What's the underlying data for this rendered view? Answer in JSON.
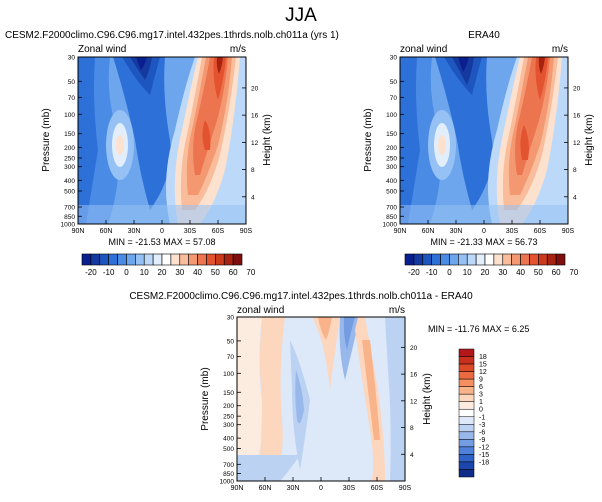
{
  "figure": {
    "title": "JJA",
    "x_ticks": [
      "90N",
      "60N",
      "30N",
      "0",
      "30S",
      "60S",
      "90S"
    ],
    "p_ticks": [
      "30",
      "50",
      "70",
      "100",
      "150",
      "200",
      "250",
      "300",
      "400",
      "500",
      "700",
      "850",
      "1000"
    ],
    "p_values": [
      30,
      50,
      70,
      100,
      150,
      200,
      250,
      300,
      400,
      500,
      700,
      850,
      1000
    ],
    "h_ticks": [
      "20",
      "16",
      "12",
      "8",
      "4"
    ],
    "h_values": [
      20,
      16,
      12,
      8,
      4
    ]
  },
  "panels": [
    {
      "id": "model",
      "title": "CESM2.F2000climo.C96.C96.mg17.intel.432pes.1thrds.nolb.ch011a (yrs 1)",
      "left_label": "Zonal wind",
      "units": "m/s",
      "ylabel": "Pressure (mb)",
      "ylabel_right": "Height (km)",
      "min_max": "MIN = -21.53  MAX = 57.08"
    },
    {
      "id": "obs",
      "title": "ERA40",
      "left_label": "zonal wind",
      "units": "m/s",
      "ylabel": "Pressure (mb)",
      "ylabel_right": "Height (km)",
      "min_max": "MIN = -21.33  MAX = 56.73"
    },
    {
      "id": "diff",
      "title": "CESM2.F2000climo.C96.C96.mg17.intel.432pes.1thrds.nolb.ch011a - ERA40",
      "left_label": "zonal wind",
      "units": "m/s",
      "ylabel": "Pressure (mb)",
      "ylabel_right": "Height (km)",
      "min_max": "MIN = -11.76  MAX =  6.25"
    }
  ],
  "colorbars": {
    "top": {
      "labels": [
        "-20",
        "-10",
        "0",
        "10",
        "20",
        "30",
        "40",
        "50",
        "60",
        "70"
      ],
      "colors": [
        "#0a1f8f",
        "#15399f",
        "#1e56c0",
        "#2d70d8",
        "#4a8be6",
        "#6ea6ee",
        "#95c1f4",
        "#bdd9f9",
        "#e2eefb",
        "#ffffff",
        "#fde1cf",
        "#f9bd9c",
        "#f49871",
        "#ec744e",
        "#e3532f",
        "#cb3a1d",
        "#a82212",
        "#7f0f0f"
      ]
    },
    "diff": {
      "labels": [
        "18",
        "15",
        "12",
        "9",
        "6",
        "3",
        "1",
        "0",
        "-1",
        "-3",
        "-6",
        "-9",
        "-12",
        "-15",
        "-18"
      ],
      "colors": [
        "#b2181b",
        "#c8301d",
        "#dd4a28",
        "#ec6a3f",
        "#f58f60",
        "#f9b38a",
        "#fcd6bd",
        "#fcece0",
        "#ffffff",
        "#dde8f9",
        "#bcd2f3",
        "#98b8ec",
        "#739ce3",
        "#4f80da",
        "#2f63c8",
        "#1c46ab",
        "#0e2c8a"
      ]
    }
  },
  "chart_data": [
    {
      "type": "heatmap",
      "title": "CESM2.F2000climo.C96.C96.mg17.intel.432pes.1thrds.nolb.ch011a (yrs 1)",
      "xlabel": "",
      "ylabel": "Pressure (mb)",
      "x_range": [
        90,
        -90
      ],
      "y_range": [
        1000,
        30
      ],
      "summary": {
        "min": -21.53,
        "max": 57.08
      },
      "levels": [
        -20,
        -15,
        -10,
        -5,
        0,
        5,
        10,
        15,
        20,
        25,
        30,
        35,
        40,
        45,
        50,
        55,
        60,
        65,
        70
      ],
      "features": [
        {
          "name": "southern-subtropical-jet",
          "lat": -38,
          "p": 200,
          "value": 35
        },
        {
          "name": "polar-night-jet",
          "lat": -58,
          "p": 30,
          "value": 57
        },
        {
          "name": "northern-subtropical-jet",
          "lat": 42,
          "p": 200,
          "value": 22
        },
        {
          "name": "tropical-easterlies",
          "lat": 8,
          "p": 30,
          "value": -21
        },
        {
          "name": "tropical-tropospheric-easterlies",
          "lat": 0,
          "p": 150,
          "value": -8
        }
      ]
    },
    {
      "type": "heatmap",
      "title": "ERA40",
      "xlabel": "",
      "ylabel": "Pressure (mb)",
      "x_range": [
        90,
        -90
      ],
      "y_range": [
        1000,
        30
      ],
      "summary": {
        "min": -21.33,
        "max": 56.73
      },
      "levels": [
        -20,
        -15,
        -10,
        -5,
        0,
        5,
        10,
        15,
        20,
        25,
        30,
        35,
        40,
        45,
        50,
        55,
        60,
        65,
        70
      ],
      "features": [
        {
          "name": "southern-subtropical-jet",
          "lat": -36,
          "p": 200,
          "value": 34
        },
        {
          "name": "polar-night-jet",
          "lat": -60,
          "p": 30,
          "value": 56
        },
        {
          "name": "northern-subtropical-jet",
          "lat": 42,
          "p": 200,
          "value": 21
        },
        {
          "name": "tropical-easterlies",
          "lat": 10,
          "p": 30,
          "value": -21
        },
        {
          "name": "tropical-tropospheric-easterlies",
          "lat": 0,
          "p": 150,
          "value": -8
        }
      ]
    },
    {
      "type": "heatmap",
      "title": "CESM2.F2000climo.C96.C96.mg17.intel.432pes.1thrds.nolb.ch011a - ERA40",
      "xlabel": "",
      "ylabel": "Pressure (mb)",
      "x_range": [
        90,
        -90
      ],
      "y_range": [
        1000,
        30
      ],
      "summary": {
        "min": -11.76,
        "max": 6.25
      },
      "levels": [
        -18,
        -15,
        -12,
        -9,
        -6,
        -3,
        -1,
        0,
        1,
        3,
        6,
        9,
        12,
        15,
        18
      ],
      "features": [
        {
          "name": "positive-band-60S",
          "lat": -55,
          "p": 300,
          "value": 5
        },
        {
          "name": "negative-tropics",
          "lat": 15,
          "p": 100,
          "value": -8
        },
        {
          "name": "positive-nh-midlat",
          "lat": 60,
          "p": 200,
          "value": 3
        },
        {
          "name": "negative-sh-upper",
          "lat": -30,
          "p": 50,
          "value": -6
        }
      ]
    }
  ]
}
